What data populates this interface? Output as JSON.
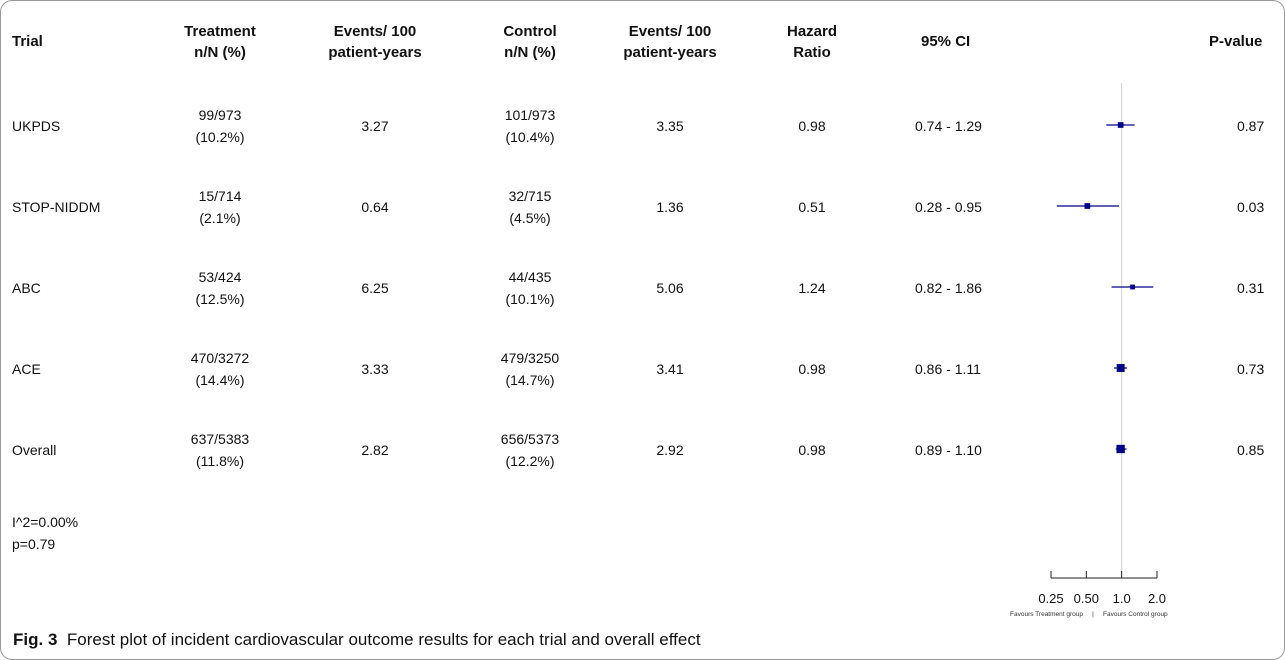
{
  "headers": {
    "trial": "Trial",
    "treatment": [
      "Treatment",
      "n/N (%)"
    ],
    "events_treatment": [
      "Events/ 100",
      "patient-years"
    ],
    "control": [
      "Control",
      "n/N (%)"
    ],
    "events_control": [
      "Events/ 100",
      "patient-years"
    ],
    "hazard": [
      "Hazard",
      "Ratio"
    ],
    "ci": "95% CI",
    "pvalue": "P-value"
  },
  "rows": [
    {
      "trial": "UKPDS",
      "treatment_n": "99/973",
      "treatment_pct": "(10.2%)",
      "events_treatment": "3.27",
      "control_n": "101/973",
      "control_pct": "(10.4%)",
      "events_control": "3.35",
      "hr": "0.98",
      "ci": "0.74 - 1.29",
      "p": "0.87"
    },
    {
      "trial": "STOP-NIDDM",
      "treatment_n": "15/714",
      "treatment_pct": "(2.1%)",
      "events_treatment": "0.64",
      "control_n": "32/715",
      "control_pct": "(4.5%)",
      "events_control": "1.36",
      "hr": "0.51",
      "ci": "0.28 - 0.95",
      "p": "0.03"
    },
    {
      "trial": "ABC",
      "treatment_n": "53/424",
      "treatment_pct": "(12.5%)",
      "events_treatment": "6.25",
      "control_n": "44/435",
      "control_pct": "(10.1%)",
      "events_control": "5.06",
      "hr": "1.24",
      "ci": "0.82 - 1.86",
      "p": "0.31"
    },
    {
      "trial": "ACE",
      "treatment_n": "470/3272",
      "treatment_pct": "(14.4%)",
      "events_treatment": "3.33",
      "control_n": "479/3250",
      "control_pct": "(14.7%)",
      "events_control": "3.41",
      "hr": "0.98",
      "ci": "0.86 - 1.11",
      "p": "0.73"
    },
    {
      "trial": "Overall",
      "treatment_n": "637/5383",
      "treatment_pct": "(11.8%)",
      "events_treatment": "2.82",
      "control_n": "656/5373",
      "control_pct": "(12.2%)",
      "events_control": "2.92",
      "hr": "0.98",
      "ci": "0.89 - 1.10",
      "p": "0.85"
    }
  ],
  "heterogeneity": {
    "i2": "I^2=0.00%",
    "p": "p=0.79"
  },
  "caption": {
    "label": "Fig. 3",
    "text": "Forest plot of incident cardiovascular outcome results for each trial and overall effect"
  },
  "chart_data": {
    "type": "scatter",
    "scale": "log",
    "reference_line": 1.0,
    "xlim": [
      0.25,
      2.0
    ],
    "ticks": [
      0.25,
      0.5,
      1.0,
      2.0
    ],
    "tick_labels": [
      "0.25",
      "0.50",
      "1.0",
      "2.0"
    ],
    "favours_left": "Favours Treatment group",
    "favours_sep": "|",
    "favours_right": "Favours Control group",
    "color": "#00008b",
    "points": [
      {
        "trial": "UKPDS",
        "hr": 0.98,
        "lo": 0.74,
        "hi": 1.29,
        "weight": 1
      },
      {
        "trial": "STOP-NIDDM",
        "hr": 0.51,
        "lo": 0.28,
        "hi": 0.95,
        "weight": 1
      },
      {
        "trial": "ABC",
        "hr": 1.24,
        "lo": 0.82,
        "hi": 1.86,
        "weight": 0.6
      },
      {
        "trial": "ACE",
        "hr": 0.98,
        "lo": 0.86,
        "hi": 1.11,
        "weight": 2
      },
      {
        "trial": "Overall",
        "hr": 0.98,
        "lo": 0.89,
        "hi": 1.1,
        "weight": 2.2
      }
    ]
  }
}
